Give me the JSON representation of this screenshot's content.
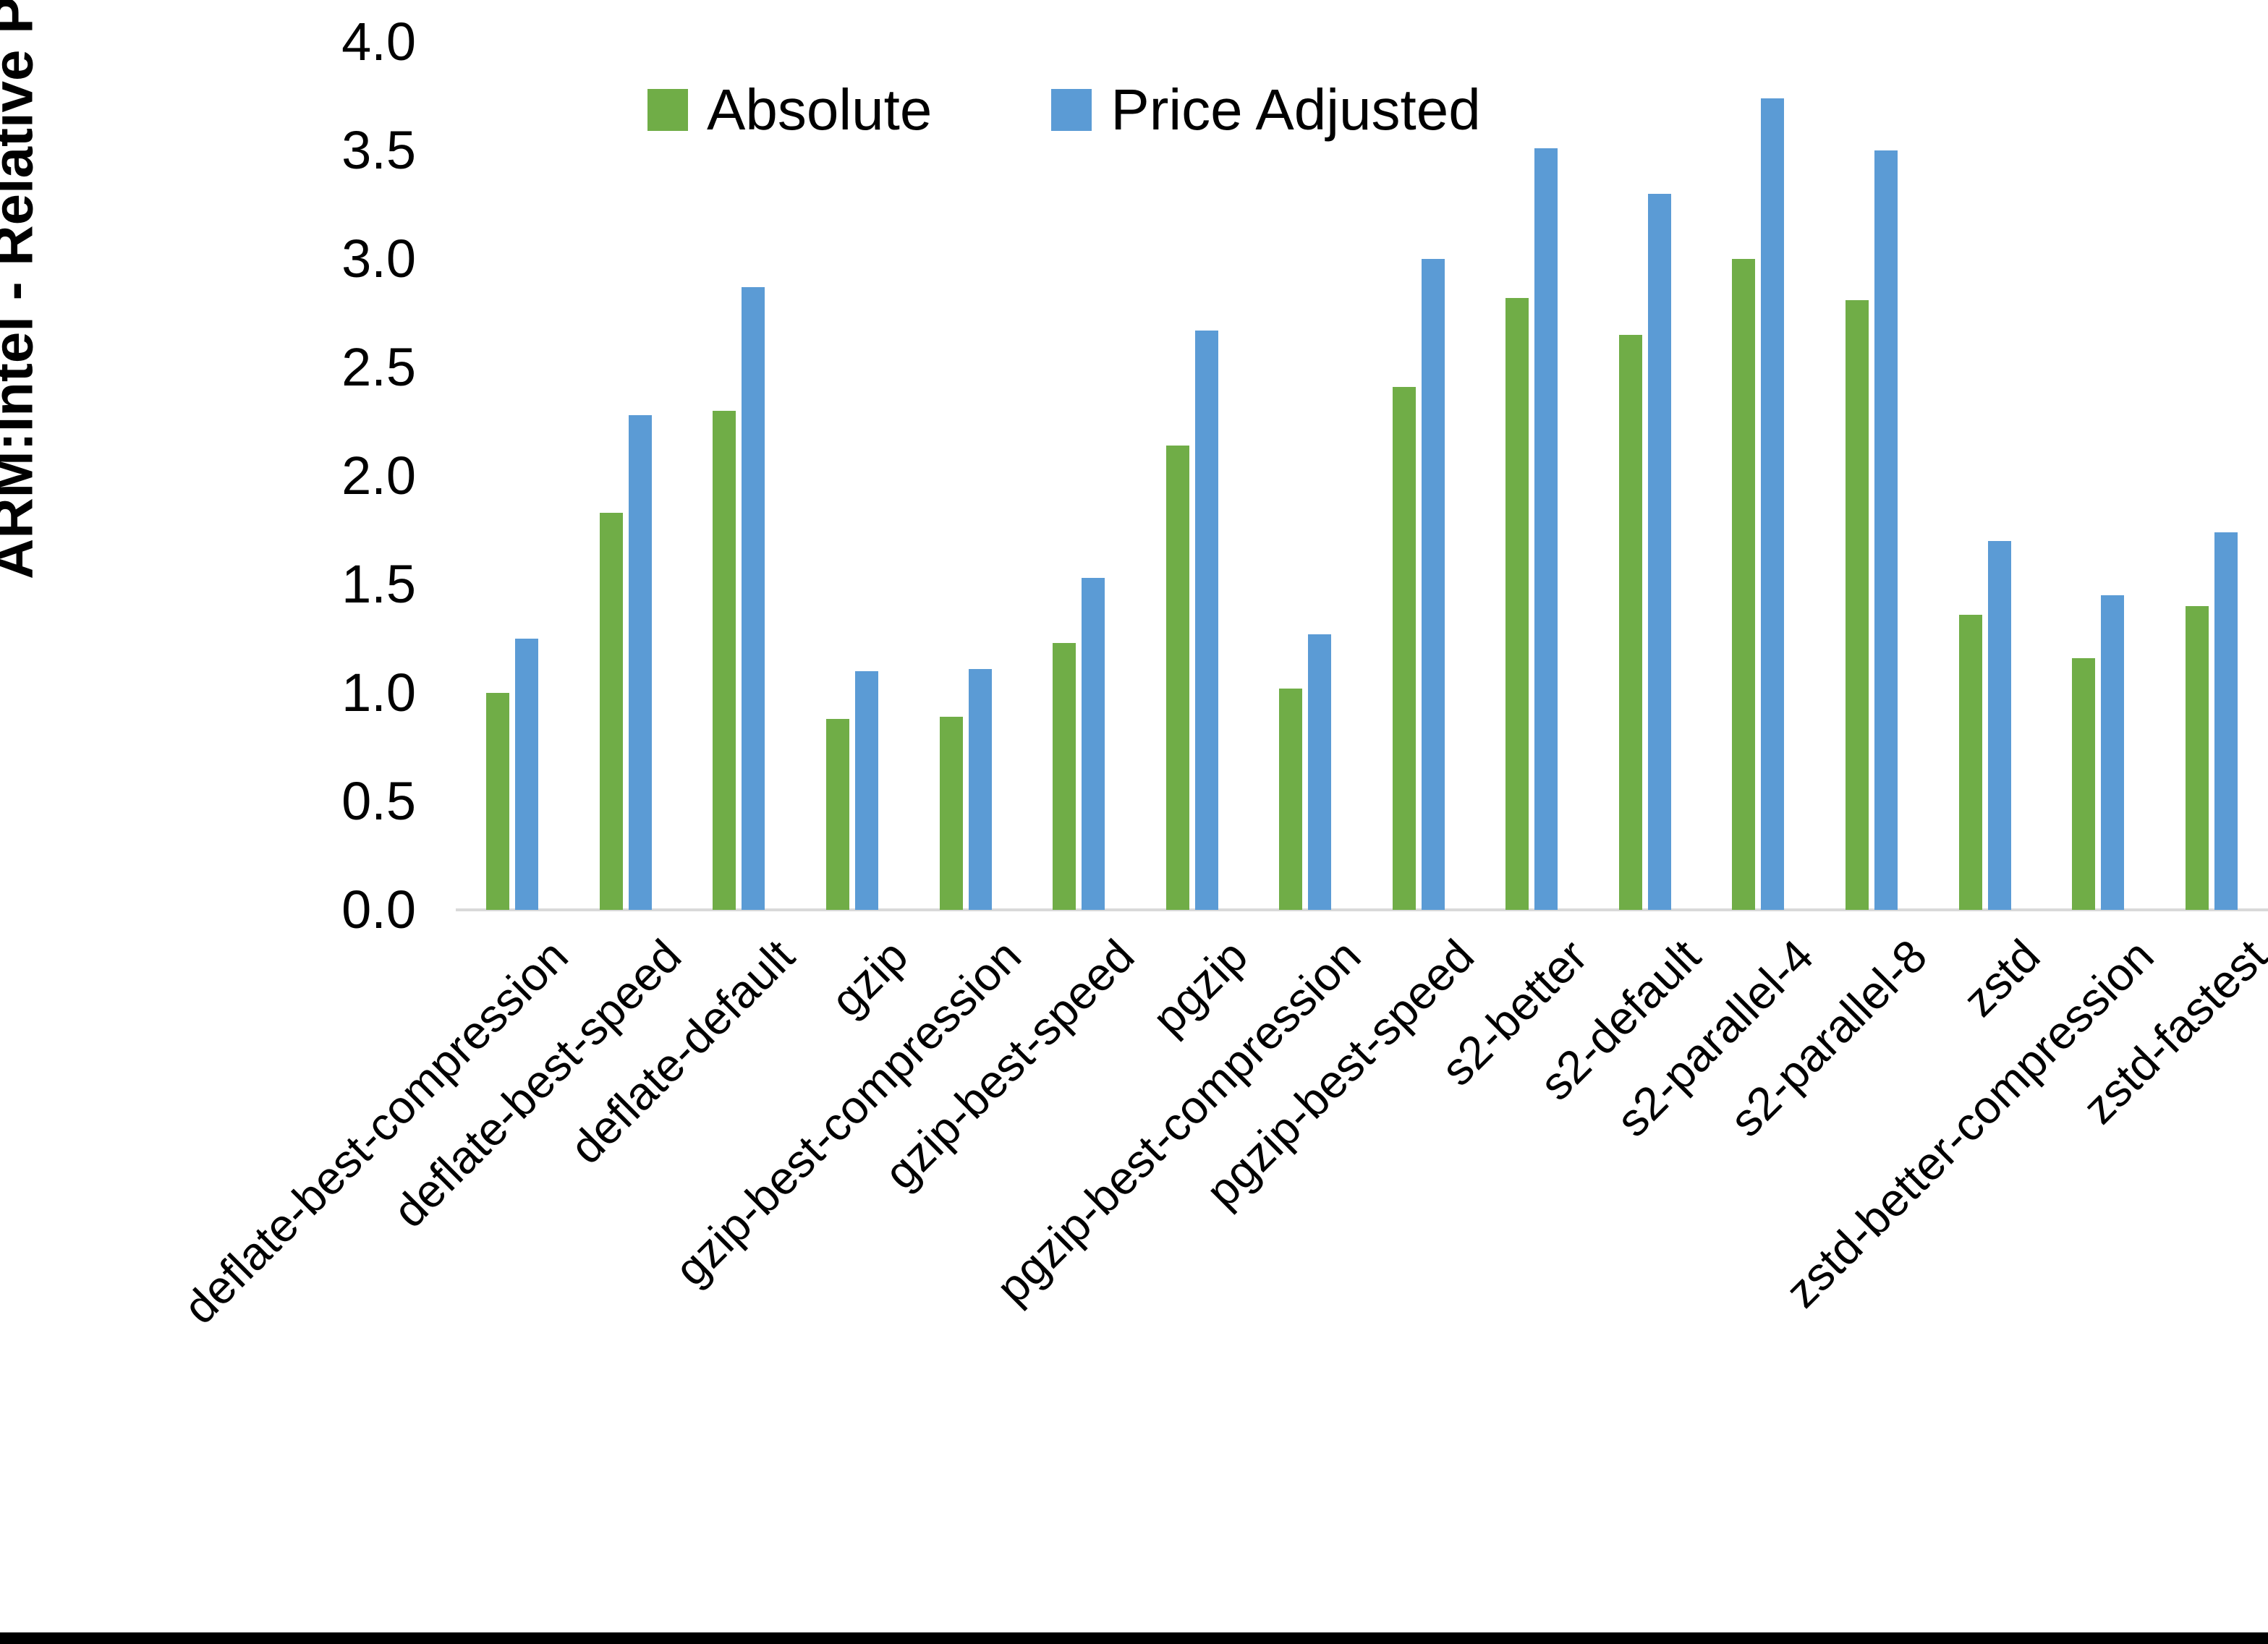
{
  "chart_data": {
    "type": "bar",
    "title": "",
    "ylabel": "ARM:Intel - Relative Performance",
    "xlabel": "",
    "ylim": [
      0.0,
      4.0
    ],
    "y_tick_labels": [
      "0.0",
      "0.5",
      "1.0",
      "1.5",
      "2.0",
      "2.5",
      "3.0",
      "3.5",
      "4.0"
    ],
    "grid": "off",
    "legend_position": "top-center-inside",
    "categories": [
      "deflate-best-compression",
      "deflate-best-speed",
      "deflate-default",
      "gzip",
      "gzip-best-compression",
      "gzip-best-speed",
      "pgzip",
      "pgzip-best-compression",
      "pgzip-best-speed",
      "s2-better",
      "s2-default",
      "s2-parallel-4",
      "s2-parallel-8",
      "zstd",
      "zstd-better-compression",
      "zstd-fastest"
    ],
    "series": [
      {
        "name": "Absolute",
        "values": [
          1.0,
          1.83,
          2.3,
          0.88,
          0.89,
          1.23,
          2.14,
          1.02,
          2.41,
          2.82,
          2.65,
          3.0,
          2.81,
          1.36,
          1.16,
          1.4
        ]
      },
      {
        "name": "Price Adjusted",
        "values": [
          1.25,
          2.28,
          2.87,
          1.1,
          1.11,
          1.53,
          2.67,
          1.27,
          3.0,
          3.51,
          3.3,
          3.74,
          3.5,
          1.7,
          1.45,
          1.74
        ]
      }
    ]
  },
  "colors": {
    "absolute": "#70AD47",
    "price_adjusted": "#5B9BD5",
    "axis_line": "#D9D9D9",
    "text": "#000000",
    "bottom_border": "#000000"
  }
}
